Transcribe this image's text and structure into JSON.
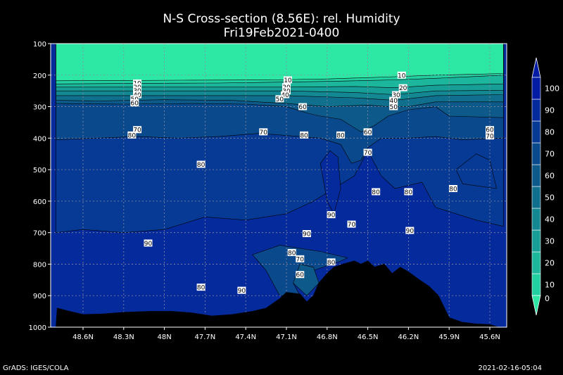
{
  "chart_data": {
    "type": "heatmap",
    "title": "N-S Cross-section (8.56E): rel. Humidity",
    "subtitle": "Fri19Feb2021-0400",
    "x_ticks": [
      "48.6N",
      "48.3N",
      "48N",
      "47.7N",
      "47.4N",
      "47.1N",
      "46.8N",
      "46.5N",
      "46.2N",
      "45.9N",
      "45.6N"
    ],
    "y_ticks": [
      100,
      200,
      300,
      400,
      500,
      600,
      700,
      800,
      900,
      1000
    ],
    "ylim": [
      100,
      1000
    ],
    "y_inverted": true,
    "grid": true,
    "colorbar": {
      "ticks": [
        0,
        10,
        20,
        30,
        40,
        50,
        60,
        70,
        80,
        90,
        100
      ],
      "colors": [
        "#2de8a4",
        "#22cfa0",
        "#1bb69b",
        "#179e97",
        "#138792",
        "#106f8d",
        "#0d5a8a",
        "#0a4a8c",
        "#073a94",
        "#052a9c",
        "#031ca3"
      ],
      "placement": "right"
    },
    "contour_labels": [
      {
        "text": "10",
        "lat": 48.2,
        "p": 225
      },
      {
        "text": "20",
        "lat": 48.2,
        "p": 237
      },
      {
        "text": "30",
        "lat": 48.2,
        "p": 249
      },
      {
        "text": "40",
        "lat": 48.2,
        "p": 262
      },
      {
        "text": "50",
        "lat": 48.22,
        "p": 275
      },
      {
        "text": "60",
        "lat": 48.22,
        "p": 288
      },
      {
        "text": "70",
        "lat": 48.2,
        "p": 373
      },
      {
        "text": "80",
        "lat": 48.24,
        "p": 390
      },
      {
        "text": "10",
        "lat": 47.09,
        "p": 215
      },
      {
        "text": "20",
        "lat": 47.1,
        "p": 237
      },
      {
        "text": "30",
        "lat": 47.1,
        "p": 250
      },
      {
        "text": "40",
        "lat": 47.11,
        "p": 262
      },
      {
        "text": "50",
        "lat": 47.15,
        "p": 275
      },
      {
        "text": "60",
        "lat": 46.98,
        "p": 300
      },
      {
        "text": "70",
        "lat": 47.27,
        "p": 380
      },
      {
        "text": "80",
        "lat": 46.97,
        "p": 390
      },
      {
        "text": "10",
        "lat": 46.25,
        "p": 200
      },
      {
        "text": "20",
        "lat": 46.24,
        "p": 240
      },
      {
        "text": "30",
        "lat": 46.29,
        "p": 262
      },
      {
        "text": "40",
        "lat": 46.31,
        "p": 280
      },
      {
        "text": "50",
        "lat": 46.31,
        "p": 300
      },
      {
        "text": "60",
        "lat": 46.5,
        "p": 380
      },
      {
        "text": "70",
        "lat": 46.5,
        "p": 445
      },
      {
        "text": "80",
        "lat": 46.7,
        "p": 390
      },
      {
        "text": "60",
        "lat": 45.6,
        "p": 373
      },
      {
        "text": "70",
        "lat": 45.6,
        "p": 393
      },
      {
        "text": "80",
        "lat": 47.73,
        "p": 483
      },
      {
        "text": "80",
        "lat": 46.44,
        "p": 570
      },
      {
        "text": "80",
        "lat": 46.2,
        "p": 570
      },
      {
        "text": "80",
        "lat": 45.87,
        "p": 560
      },
      {
        "text": "90",
        "lat": 46.77,
        "p": 643
      },
      {
        "text": "70",
        "lat": 46.62,
        "p": 673
      },
      {
        "text": "90",
        "lat": 46.95,
        "p": 703
      },
      {
        "text": "90",
        "lat": 46.19,
        "p": 693
      },
      {
        "text": "90",
        "lat": 48.12,
        "p": 733
      },
      {
        "text": "80",
        "lat": 47.06,
        "p": 763
      },
      {
        "text": "70",
        "lat": 47.0,
        "p": 783
      },
      {
        "text": "80",
        "lat": 46.77,
        "p": 793
      },
      {
        "text": "60",
        "lat": 47.0,
        "p": 833
      },
      {
        "text": "80",
        "lat": 47.73,
        "p": 873
      },
      {
        "text": "90",
        "lat": 47.43,
        "p": 883
      }
    ],
    "terrain": [
      [
        48.79,
        940
      ],
      [
        48.7,
        950
      ],
      [
        48.6,
        960
      ],
      [
        48.45,
        958
      ],
      [
        48.3,
        953
      ],
      [
        48.1,
        950
      ],
      [
        47.95,
        950
      ],
      [
        47.8,
        955
      ],
      [
        47.65,
        965
      ],
      [
        47.5,
        960
      ],
      [
        47.35,
        950
      ],
      [
        47.25,
        940
      ],
      [
        47.15,
        910
      ],
      [
        47.1,
        890
      ],
      [
        47.0,
        895
      ],
      [
        46.95,
        920
      ],
      [
        46.9,
        900
      ],
      [
        46.86,
        860
      ],
      [
        46.8,
        830
      ],
      [
        46.75,
        810
      ],
      [
        46.68,
        800
      ],
      [
        46.6,
        790
      ],
      [
        46.55,
        800
      ],
      [
        46.5,
        790
      ],
      [
        46.45,
        810
      ],
      [
        46.38,
        800
      ],
      [
        46.32,
        830
      ],
      [
        46.26,
        810
      ],
      [
        46.2,
        825
      ],
      [
        46.12,
        850
      ],
      [
        46.05,
        870
      ],
      [
        45.98,
        900
      ],
      [
        45.9,
        970
      ],
      [
        45.8,
        985
      ],
      [
        45.7,
        990
      ],
      [
        45.6,
        992
      ],
      [
        45.54,
        1000
      ]
    ]
  },
  "footer": {
    "left": "GrADS: IGES/COLA",
    "right": "2021-02-16-05:04"
  }
}
